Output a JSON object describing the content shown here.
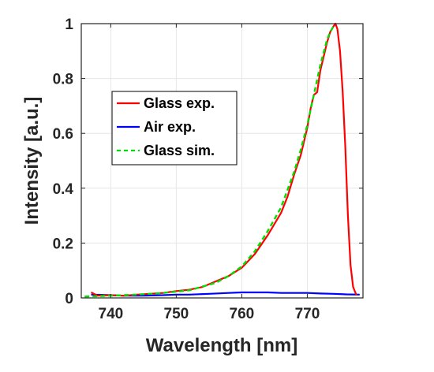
{
  "chart_data": {
    "type": "line",
    "xlabel": "Wavelength [nm]",
    "ylabel": "Intensity [a.u.]",
    "xlim": [
      735.5,
      778.5
    ],
    "ylim": [
      0,
      1
    ],
    "xticks": [
      740,
      750,
      760,
      770
    ],
    "yticks": [
      0,
      0.2,
      0.4,
      0.6,
      0.8,
      1
    ],
    "xtick_labels": [
      "740",
      "750",
      "760",
      "770"
    ],
    "ytick_labels": [
      "0",
      "0.2",
      "0.4",
      "0.6",
      "0.8",
      "1"
    ],
    "grid": true,
    "legend_position": "upper-left",
    "series": [
      {
        "name": "Glass exp.",
        "color": "#ff0000",
        "style": "solid",
        "x": [
          737,
          738,
          740,
          742,
          744,
          746,
          748,
          750,
          752,
          754,
          756,
          758,
          760,
          762,
          764,
          766,
          767,
          768,
          769,
          770,
          770.5,
          771,
          771.5,
          772,
          772.5,
          773,
          773.5,
          774,
          774.3,
          774.6,
          775,
          775.4,
          775.8,
          776.2,
          776.6,
          777,
          777.5
        ],
        "y": [
          0.02,
          0.008,
          0.01,
          0.008,
          0.012,
          0.015,
          0.018,
          0.025,
          0.03,
          0.04,
          0.06,
          0.08,
          0.11,
          0.16,
          0.23,
          0.31,
          0.37,
          0.45,
          0.52,
          0.62,
          0.69,
          0.74,
          0.75,
          0.83,
          0.88,
          0.93,
          0.97,
          0.99,
          1.0,
          0.98,
          0.9,
          0.75,
          0.55,
          0.3,
          0.12,
          0.04,
          0.01
        ]
      },
      {
        "name": "Air exp.",
        "color": "#0000ff",
        "style": "solid",
        "x": [
          737,
          740,
          742,
          745,
          748,
          750,
          752,
          755,
          758,
          760,
          762,
          764,
          766,
          768,
          770,
          772,
          774,
          776,
          778
        ],
        "y": [
          0.012,
          0.01,
          0.008,
          0.008,
          0.01,
          0.012,
          0.012,
          0.015,
          0.018,
          0.02,
          0.02,
          0.02,
          0.018,
          0.018,
          0.018,
          0.016,
          0.015,
          0.013,
          0.012
        ]
      },
      {
        "name": "Glass sim.",
        "color": "#00e000",
        "style": "dashed",
        "x": [
          736,
          740,
          744,
          748,
          752,
          756,
          758,
          760,
          762,
          764,
          766,
          768,
          769,
          770,
          771,
          772,
          773,
          773.5,
          774
        ],
        "y": [
          0.005,
          0.008,
          0.012,
          0.018,
          0.028,
          0.055,
          0.08,
          0.115,
          0.17,
          0.245,
          0.33,
          0.46,
          0.54,
          0.63,
          0.74,
          0.85,
          0.94,
          0.97,
          0.99
        ]
      }
    ]
  }
}
